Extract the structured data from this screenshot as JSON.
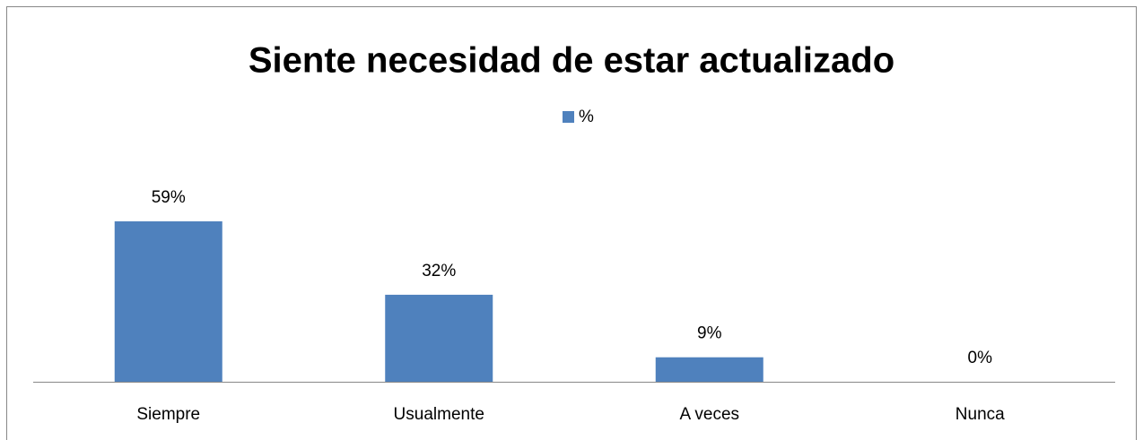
{
  "chart_data": {
    "type": "bar",
    "title": "Siente necesidad de estar actualizado",
    "categories": [
      "Siempre",
      "Usualmente",
      "A veces",
      "Nunca"
    ],
    "series": [
      {
        "name": "%",
        "color": "#4f81bd",
        "values": [
          59,
          32,
          9,
          0
        ],
        "value_labels": [
          "59%",
          "32%",
          "9%",
          "0%"
        ]
      }
    ],
    "legend": "top"
  }
}
